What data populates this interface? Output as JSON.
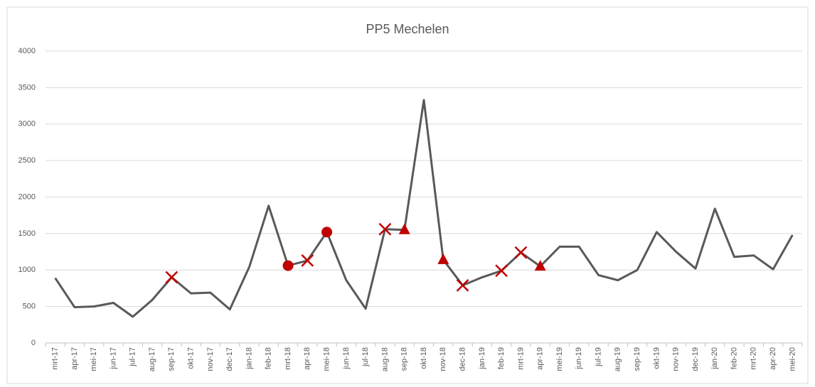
{
  "chart_data": {
    "type": "line",
    "title": "PP5 Mechelen",
    "categories": [
      "mrt-17",
      "apr-17",
      "mei-17",
      "jun-17",
      "jul-17",
      "aug-17",
      "sep-17",
      "okt-17",
      "nov-17",
      "dec-17",
      "jan-18",
      "feb-18",
      "mrt-18",
      "apr-18",
      "mei-18",
      "jun-18",
      "jul-18",
      "aug-18",
      "sep-18",
      "okt-18",
      "nov-18",
      "dec-18",
      "jan-19",
      "feb-19",
      "mrt-19",
      "apr-19",
      "mei-19",
      "jun-19",
      "jul-19",
      "aug-19",
      "sep-19",
      "okt-19",
      "nov-19",
      "dec-19",
      "jan-20",
      "feb-20",
      "mrt-20",
      "apr-20",
      "mei-20"
    ],
    "series": [
      {
        "color": "#595959",
        "values": [
          890,
          490,
          500,
          550,
          360,
          590,
          900,
          680,
          690,
          460,
          1040,
          1880,
          1060,
          1130,
          1520,
          860,
          470,
          1560,
          1550,
          3330,
          1140,
          790,
          900,
          990,
          1240,
          1050,
          1320,
          1320,
          930,
          860,
          1000,
          1520,
          1250,
          1020,
          1840,
          1180,
          1200,
          1010,
          1480
        ],
        "markers": [
          null,
          null,
          null,
          null,
          null,
          null,
          "x",
          null,
          null,
          null,
          null,
          null,
          "circle",
          "x",
          "circle",
          null,
          null,
          "x",
          "triangle",
          null,
          "triangle",
          "x",
          null,
          "x",
          "x",
          "triangle",
          null,
          null,
          null,
          null,
          null,
          null,
          null,
          null,
          null,
          null,
          null,
          null,
          null
        ],
        "marker_color": "#c00000"
      }
    ],
    "ylim": [
      0,
      4000
    ],
    "yticks": [
      0,
      500,
      1000,
      1500,
      2000,
      2500,
      3000,
      3500,
      4000
    ],
    "grid": true
  }
}
